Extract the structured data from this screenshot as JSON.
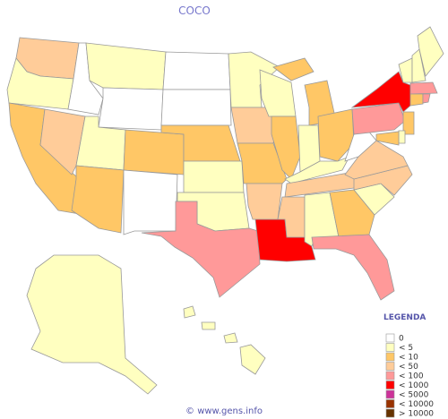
{
  "title": "COCO",
  "legend": {
    "title": "LEGENDA",
    "items": [
      {
        "label": "0",
        "color": "#ffffff"
      },
      {
        "label": "< 5",
        "color": "#ffffc0"
      },
      {
        "label": "< 10",
        "color": "#ffc766"
      },
      {
        "label": "< 50",
        "color": "#ffcc99"
      },
      {
        "label": "< 100",
        "color": "#ff9999"
      },
      {
        "label": "< 1000",
        "color": "#ff0000"
      },
      {
        "label": "< 5000",
        "color": "#cc3399"
      },
      {
        "label": "< 10000",
        "color": "#993300"
      },
      {
        "label": "> 10000",
        "color": "#663300"
      }
    ]
  },
  "footer": "© www.gens.info"
}
